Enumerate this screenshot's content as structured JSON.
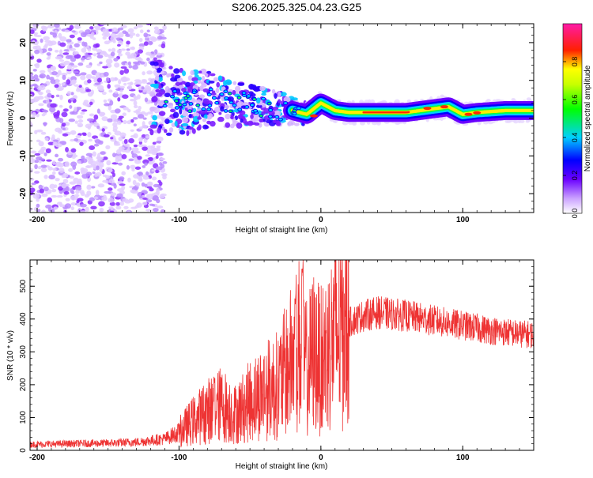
{
  "title": "S206.2025.325.04.23.G25",
  "chart_data": [
    {
      "type": "heatmap",
      "description": "Spectrogram of occultation signal: frequency vs height of straight line",
      "xlabel": "Height of straight line (km)",
      "ylabel": "Frequency (Hz)",
      "xlim": [
        -205,
        150
      ],
      "ylim": [
        -25,
        25
      ],
      "xticks": [
        -200,
        -100,
        0,
        100
      ],
      "yticks": [
        -20,
        -10,
        0,
        10,
        20
      ],
      "colorbar": {
        "label": "Normalized spectral amplitude",
        "range": [
          0.0,
          1.0
        ],
        "ticks": [
          0.0,
          0.2,
          0.4,
          0.6,
          0.8
        ],
        "tick_labels": [
          "0.0",
          "0.2",
          "0.4",
          "0.6",
          "0.8"
        ],
        "colors": [
          "#ffffff",
          "#7a00ff",
          "#0000ff",
          "#00e5ff",
          "#00ff00",
          "#ffff00",
          "#ff0000",
          "#ff1493"
        ]
      },
      "ridge": {
        "x": [
          -120,
          -100,
          -80,
          -60,
          -40,
          -20,
          -10,
          0,
          10,
          20,
          40,
          60,
          80,
          90,
          100,
          110,
          130,
          150
        ],
        "y": [
          6,
          4,
          5,
          4,
          3,
          2,
          1,
          4,
          2,
          1.5,
          1.5,
          1.5,
          2.5,
          3,
          1,
          1.5,
          2,
          2
        ]
      },
      "noise_region": [
        -205,
        -110
      ]
    },
    {
      "type": "line",
      "xlabel": "Height of straight line (km)",
      "ylabel": "SNR (10 * v/v)",
      "xlim": [
        -205,
        150
      ],
      "ylim": [
        0,
        580
      ],
      "xticks": [
        -200,
        -100,
        0,
        100
      ],
      "yticks": [
        0,
        100,
        200,
        300,
        400,
        500
      ],
      "color": "#ee3333",
      "series": [
        {
          "name": "SNR",
          "x": [
            -205,
            -180,
            -150,
            -130,
            -110,
            -100,
            -90,
            -80,
            -70,
            -60,
            -50,
            -40,
            -30,
            -20,
            -15,
            -10,
            -5,
            0,
            10,
            20,
            30,
            40,
            50,
            60,
            80,
            100,
            120,
            140,
            150
          ],
          "y": [
            18,
            20,
            22,
            25,
            35,
            55,
            90,
            120,
            140,
            110,
            150,
            180,
            200,
            280,
            330,
            250,
            300,
            270,
            350,
            390,
            410,
            420,
            415,
            410,
            395,
            380,
            365,
            355,
            352
          ]
        }
      ],
      "peaks": [
        {
          "x": -13,
          "y": 580
        },
        {
          "x": -18,
          "y": 480
        },
        {
          "x": -75,
          "y": 225
        }
      ]
    }
  ]
}
